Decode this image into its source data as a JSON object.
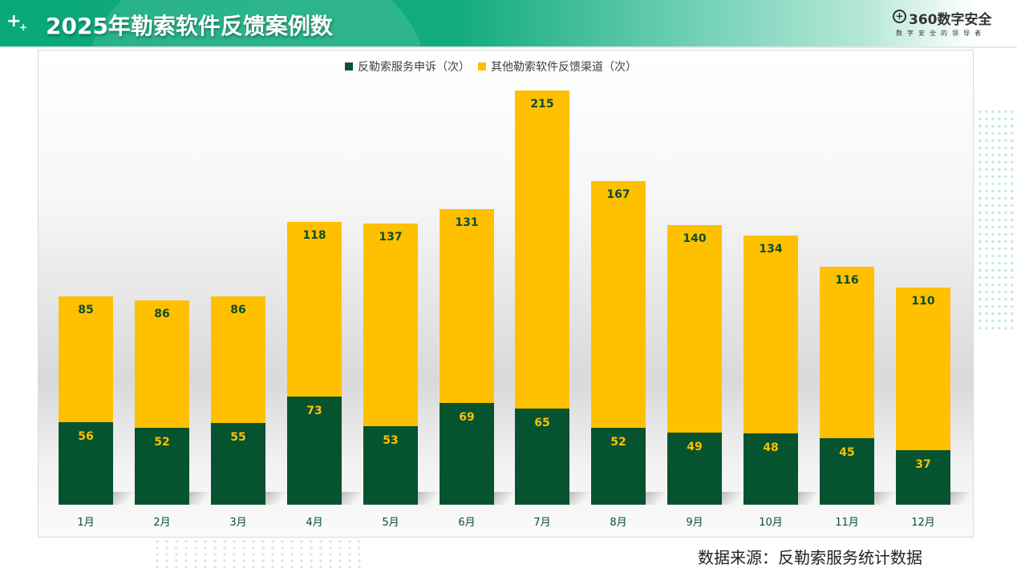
{
  "header": {
    "title": "2025年勒索软件反馈案例数",
    "plus_icon": "+",
    "plus_small_icon": "+",
    "logo": {
      "mark": "+",
      "name": "360数字安全",
      "slogan": "数字安全的领导者"
    }
  },
  "colors": {
    "header_green": "#0aa878",
    "series_green": "#06532f",
    "series_yellow": "#ffc000",
    "label_on_yellow": "#0b4f2e",
    "label_on_green": "#ffc000"
  },
  "legend": [
    {
      "label": "反勒索服务申诉（次）",
      "color": "#06532f"
    },
    {
      "label": "其他勒索软件反馈渠道（次）",
      "color": "#ffc000"
    }
  ],
  "chart_data": {
    "type": "bar",
    "stacked": true,
    "title": "2025年勒索软件反馈案例数",
    "xlabel": "",
    "ylabel": "",
    "categories": [
      "1月",
      "2月",
      "3月",
      "4月",
      "5月",
      "6月",
      "7月",
      "8月",
      "9月",
      "10月",
      "11月",
      "12月"
    ],
    "series": [
      {
        "name": "反勒索服务申诉（次）",
        "color": "#06532f",
        "values": [
          56,
          52,
          55,
          73,
          53,
          69,
          65,
          52,
          49,
          48,
          45,
          37
        ]
      },
      {
        "name": "其他勒索软件反馈渠道（次）",
        "color": "#ffc000",
        "values": [
          85,
          86,
          86,
          118,
          137,
          131,
          215,
          167,
          140,
          134,
          116,
          110
        ]
      }
    ],
    "legend_position": "top",
    "grid": false,
    "data_labels": true,
    "ylim": [
      0,
      280
    ]
  },
  "labels": {
    "months": [
      "1月",
      "2月",
      "3月",
      "4月",
      "5月",
      "6月",
      "7月",
      "8月",
      "9月",
      "10月",
      "11月",
      "12月"
    ],
    "green": [
      "56",
      "52",
      "55",
      "73",
      "53",
      "69",
      "65",
      "52",
      "49",
      "48",
      "45",
      "37"
    ],
    "yellow": [
      "85",
      "86",
      "86",
      "118",
      "137",
      "131",
      "215",
      "167",
      "140",
      "134",
      "116",
      "110"
    ]
  },
  "footer": {
    "source": "数据来源：反勒索服务统计数据"
  }
}
